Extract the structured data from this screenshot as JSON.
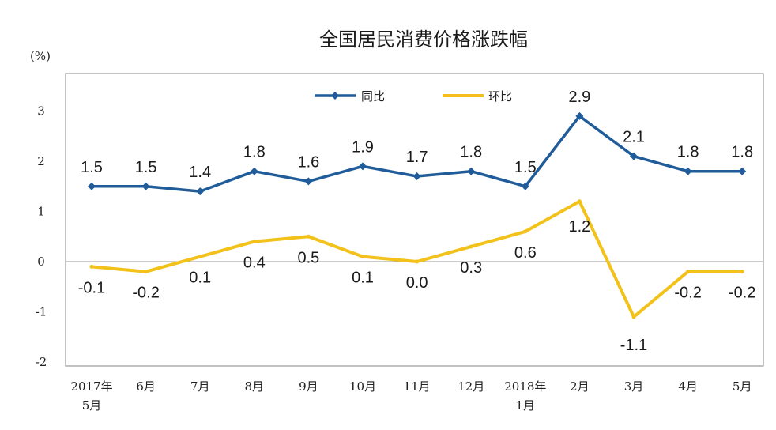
{
  "chart_data": {
    "type": "line",
    "title": "全国居民消费价格涨跌幅",
    "unit_label": "(%)",
    "categories": [
      [
        "2017年",
        "5月"
      ],
      [
        "6月"
      ],
      [
        "7月"
      ],
      [
        "8月"
      ],
      [
        "9月"
      ],
      [
        "10月"
      ],
      [
        "11月"
      ],
      [
        "12月"
      ],
      [
        "2018年",
        "1月"
      ],
      [
        "2月"
      ],
      [
        "3月"
      ],
      [
        "4月"
      ],
      [
        "5月"
      ]
    ],
    "series": [
      {
        "name": "同比",
        "color": "#1f5c99",
        "values": [
          1.5,
          1.5,
          1.4,
          1.8,
          1.6,
          1.9,
          1.7,
          1.8,
          1.5,
          2.9,
          2.1,
          1.8,
          1.8
        ],
        "labels": [
          "1.5",
          "1.5",
          "1.4",
          "1.8",
          "1.6",
          "1.9",
          "1.7",
          "1.8",
          "1.5",
          "2.9",
          "2.1",
          "1.8",
          "1.8"
        ]
      },
      {
        "name": "环比",
        "color": "#f2c21b",
        "values": [
          -0.1,
          -0.2,
          0.1,
          0.4,
          0.5,
          0.1,
          0.0,
          0.3,
          0.6,
          1.2,
          -1.1,
          -0.2,
          -0.2
        ],
        "labels": [
          "-0.1",
          "-0.2",
          "0.1",
          "0.4",
          "0.5",
          "0.1",
          "0.0",
          "0.3",
          "0.6",
          "1.2",
          "-1.1",
          "-0.2",
          "-0.2"
        ]
      }
    ],
    "y_ticks": [
      "3",
      "2",
      "1",
      "0",
      "-1",
      "-2"
    ],
    "ylim": [
      -2,
      3.5
    ],
    "legend_position": "top-center",
    "grid": false
  }
}
